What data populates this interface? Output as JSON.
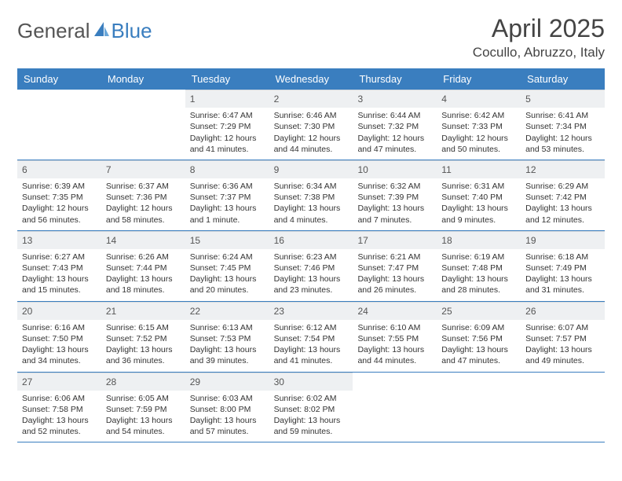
{
  "brand": {
    "part1": "General",
    "part2": "Blue"
  },
  "title": "April 2025",
  "location": "Cocullo, Abruzzo, Italy",
  "colors": {
    "header_bg": "#3a7ebf",
    "header_text": "#ffffff",
    "daynum_bg": "#eef0f2",
    "border": "#3a7ebf",
    "text": "#333333"
  },
  "day_names": [
    "Sunday",
    "Monday",
    "Tuesday",
    "Wednesday",
    "Thursday",
    "Friday",
    "Saturday"
  ],
  "weeks": [
    [
      {
        "n": "",
        "empty": true,
        "sr": "",
        "ss": "",
        "dl": ""
      },
      {
        "n": "",
        "empty": true,
        "sr": "",
        "ss": "",
        "dl": ""
      },
      {
        "n": "1",
        "sr": "Sunrise: 6:47 AM",
        "ss": "Sunset: 7:29 PM",
        "dl": "Daylight: 12 hours and 41 minutes."
      },
      {
        "n": "2",
        "sr": "Sunrise: 6:46 AM",
        "ss": "Sunset: 7:30 PM",
        "dl": "Daylight: 12 hours and 44 minutes."
      },
      {
        "n": "3",
        "sr": "Sunrise: 6:44 AM",
        "ss": "Sunset: 7:32 PM",
        "dl": "Daylight: 12 hours and 47 minutes."
      },
      {
        "n": "4",
        "sr": "Sunrise: 6:42 AM",
        "ss": "Sunset: 7:33 PM",
        "dl": "Daylight: 12 hours and 50 minutes."
      },
      {
        "n": "5",
        "sr": "Sunrise: 6:41 AM",
        "ss": "Sunset: 7:34 PM",
        "dl": "Daylight: 12 hours and 53 minutes."
      }
    ],
    [
      {
        "n": "6",
        "sr": "Sunrise: 6:39 AM",
        "ss": "Sunset: 7:35 PM",
        "dl": "Daylight: 12 hours and 56 minutes."
      },
      {
        "n": "7",
        "sr": "Sunrise: 6:37 AM",
        "ss": "Sunset: 7:36 PM",
        "dl": "Daylight: 12 hours and 58 minutes."
      },
      {
        "n": "8",
        "sr": "Sunrise: 6:36 AM",
        "ss": "Sunset: 7:37 PM",
        "dl": "Daylight: 13 hours and 1 minute."
      },
      {
        "n": "9",
        "sr": "Sunrise: 6:34 AM",
        "ss": "Sunset: 7:38 PM",
        "dl": "Daylight: 13 hours and 4 minutes."
      },
      {
        "n": "10",
        "sr": "Sunrise: 6:32 AM",
        "ss": "Sunset: 7:39 PM",
        "dl": "Daylight: 13 hours and 7 minutes."
      },
      {
        "n": "11",
        "sr": "Sunrise: 6:31 AM",
        "ss": "Sunset: 7:40 PM",
        "dl": "Daylight: 13 hours and 9 minutes."
      },
      {
        "n": "12",
        "sr": "Sunrise: 6:29 AM",
        "ss": "Sunset: 7:42 PM",
        "dl": "Daylight: 13 hours and 12 minutes."
      }
    ],
    [
      {
        "n": "13",
        "sr": "Sunrise: 6:27 AM",
        "ss": "Sunset: 7:43 PM",
        "dl": "Daylight: 13 hours and 15 minutes."
      },
      {
        "n": "14",
        "sr": "Sunrise: 6:26 AM",
        "ss": "Sunset: 7:44 PM",
        "dl": "Daylight: 13 hours and 18 minutes."
      },
      {
        "n": "15",
        "sr": "Sunrise: 6:24 AM",
        "ss": "Sunset: 7:45 PM",
        "dl": "Daylight: 13 hours and 20 minutes."
      },
      {
        "n": "16",
        "sr": "Sunrise: 6:23 AM",
        "ss": "Sunset: 7:46 PM",
        "dl": "Daylight: 13 hours and 23 minutes."
      },
      {
        "n": "17",
        "sr": "Sunrise: 6:21 AM",
        "ss": "Sunset: 7:47 PM",
        "dl": "Daylight: 13 hours and 26 minutes."
      },
      {
        "n": "18",
        "sr": "Sunrise: 6:19 AM",
        "ss": "Sunset: 7:48 PM",
        "dl": "Daylight: 13 hours and 28 minutes."
      },
      {
        "n": "19",
        "sr": "Sunrise: 6:18 AM",
        "ss": "Sunset: 7:49 PM",
        "dl": "Daylight: 13 hours and 31 minutes."
      }
    ],
    [
      {
        "n": "20",
        "sr": "Sunrise: 6:16 AM",
        "ss": "Sunset: 7:50 PM",
        "dl": "Daylight: 13 hours and 34 minutes."
      },
      {
        "n": "21",
        "sr": "Sunrise: 6:15 AM",
        "ss": "Sunset: 7:52 PM",
        "dl": "Daylight: 13 hours and 36 minutes."
      },
      {
        "n": "22",
        "sr": "Sunrise: 6:13 AM",
        "ss": "Sunset: 7:53 PM",
        "dl": "Daylight: 13 hours and 39 minutes."
      },
      {
        "n": "23",
        "sr": "Sunrise: 6:12 AM",
        "ss": "Sunset: 7:54 PM",
        "dl": "Daylight: 13 hours and 41 minutes."
      },
      {
        "n": "24",
        "sr": "Sunrise: 6:10 AM",
        "ss": "Sunset: 7:55 PM",
        "dl": "Daylight: 13 hours and 44 minutes."
      },
      {
        "n": "25",
        "sr": "Sunrise: 6:09 AM",
        "ss": "Sunset: 7:56 PM",
        "dl": "Daylight: 13 hours and 47 minutes."
      },
      {
        "n": "26",
        "sr": "Sunrise: 6:07 AM",
        "ss": "Sunset: 7:57 PM",
        "dl": "Daylight: 13 hours and 49 minutes."
      }
    ],
    [
      {
        "n": "27",
        "sr": "Sunrise: 6:06 AM",
        "ss": "Sunset: 7:58 PM",
        "dl": "Daylight: 13 hours and 52 minutes."
      },
      {
        "n": "28",
        "sr": "Sunrise: 6:05 AM",
        "ss": "Sunset: 7:59 PM",
        "dl": "Daylight: 13 hours and 54 minutes."
      },
      {
        "n": "29",
        "sr": "Sunrise: 6:03 AM",
        "ss": "Sunset: 8:00 PM",
        "dl": "Daylight: 13 hours and 57 minutes."
      },
      {
        "n": "30",
        "sr": "Sunrise: 6:02 AM",
        "ss": "Sunset: 8:02 PM",
        "dl": "Daylight: 13 hours and 59 minutes."
      },
      {
        "n": "",
        "empty": true,
        "sr": "",
        "ss": "",
        "dl": ""
      },
      {
        "n": "",
        "empty": true,
        "sr": "",
        "ss": "",
        "dl": ""
      },
      {
        "n": "",
        "empty": true,
        "sr": "",
        "ss": "",
        "dl": ""
      }
    ]
  ]
}
